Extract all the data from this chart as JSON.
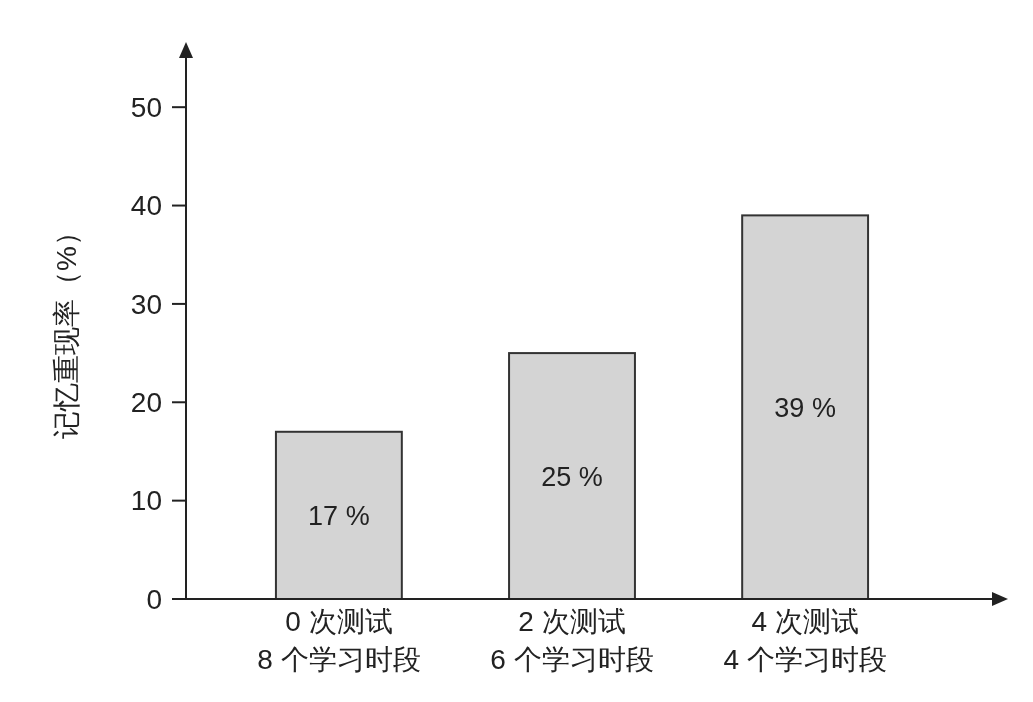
{
  "chart_data": {
    "type": "bar",
    "ylabel": "记忆重现率（%）",
    "categories": [
      "0 次测试\n8 个学习时段",
      "2 次测试\n6 个学习时段",
      "4 次测试\n4 个学习时段"
    ],
    "values": [
      17,
      25,
      39
    ],
    "value_labels": [
      "17 %",
      "25 %",
      "39 %"
    ],
    "color": "#d4d4d4",
    "ylim": [
      0,
      55
    ],
    "yticks": [
      0,
      10,
      20,
      30,
      40,
      50
    ],
    "grid": false
  }
}
